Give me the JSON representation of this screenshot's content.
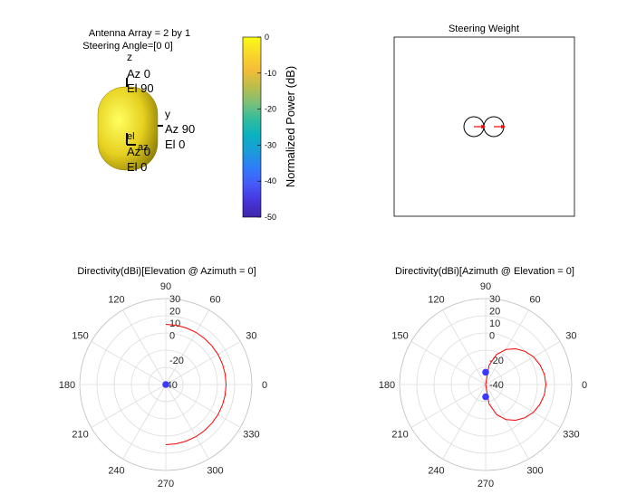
{
  "figure": {
    "antenna_title_line1": "Antenna Array = 2 by 1",
    "antenna_title_line2": "Steering Angle=[0 0]",
    "body_color": "#e6d020",
    "axis_labels": {
      "z_label": "z",
      "z_az": "Az 0",
      "z_el": "El 90",
      "y_label": "y",
      "y_az": "Az 90",
      "y_el": "El 0",
      "x_el": "el",
      "x_az_short": "az",
      "x_az": "Az 0",
      "x_el_val": "El 0"
    }
  },
  "chart_data": [
    {
      "type": "colorbar",
      "ylabel": "Normalized Power (dB)",
      "range": [
        -50,
        0
      ],
      "ticks": [
        0,
        -10,
        -20,
        -30,
        -40,
        -50
      ],
      "tick_labels": [
        "0",
        "-10",
        "-20",
        "-30",
        "-40",
        "-50"
      ],
      "colormap": [
        "#3e26a8",
        "#4734dd",
        "#4659f9",
        "#2f7cfa",
        "#1a9bda",
        "#0ab1c0",
        "#31bd9c",
        "#7fbf77",
        "#bcbd49",
        "#f4bd38",
        "#f9d82a",
        "#f9fb15"
      ]
    },
    {
      "type": "scatter",
      "title": "Steering Weight",
      "points": [
        {
          "x": -1,
          "y": 0
        },
        {
          "x": 1,
          "y": 0
        }
      ],
      "arrows": [
        {
          "x": -1,
          "angle_deg": 0
        },
        {
          "x": 1,
          "angle_deg": 0
        }
      ],
      "marker": "circle",
      "arrow_color": "#ff0000",
      "grid": false
    },
    {
      "type": "polar",
      "title": "Directivity(dBi)[Elevation @ Azimuth = 0]",
      "angle_ticks": [
        0,
        30,
        60,
        90,
        120,
        150,
        180,
        210,
        240,
        270,
        300,
        330
      ],
      "angle_tick_labels": [
        "0",
        "30",
        "60",
        "90",
        "120",
        "150",
        "180",
        "210",
        "240",
        "270",
        "300",
        "330"
      ],
      "radial_ticks": [
        30,
        20,
        10,
        0,
        -20
      ],
      "radial_tick_labels": [
        "30",
        "20",
        "10",
        "0",
        "-20"
      ],
      "radial_labels_extra": [
        "-40"
      ],
      "series": [
        {
          "color": "#ff0000",
          "points": [
            {
              "theta": 90,
              "r": 9
            },
            {
              "theta": 80,
              "r": 9
            },
            {
              "theta": 70,
              "r": 9
            },
            {
              "theta": 60,
              "r": 9
            },
            {
              "theta": 50,
              "r": 9
            },
            {
              "theta": 40,
              "r": 9
            },
            {
              "theta": 30,
              "r": 9
            },
            {
              "theta": 20,
              "r": 9
            },
            {
              "theta": 10,
              "r": 9
            },
            {
              "theta": 0,
              "r": 9
            },
            {
              "theta": -10,
              "r": 9
            },
            {
              "theta": -20,
              "r": 9
            },
            {
              "theta": -30,
              "r": 9
            },
            {
              "theta": -40,
              "r": 9
            },
            {
              "theta": -50,
              "r": 9
            },
            {
              "theta": -60,
              "r": 9
            },
            {
              "theta": -70,
              "r": 9
            },
            {
              "theta": -80,
              "r": 9
            },
            {
              "theta": -90,
              "r": 9
            }
          ]
        }
      ],
      "markers": [
        {
          "theta": 0,
          "r": -40
        }
      ],
      "marker_color": "#3a3aff",
      "rlim": [
        -40,
        30
      ]
    },
    {
      "type": "polar",
      "title": "Directivity(dBi)[Azimuth @ Elevation = 0]",
      "angle_ticks": [
        0,
        30,
        60,
        90,
        120,
        150,
        180,
        210,
        240,
        270,
        300,
        330
      ],
      "angle_tick_labels": [
        "0",
        "30",
        "60",
        "90",
        "120",
        "150",
        "180",
        "210",
        "240",
        "270",
        "300",
        "330"
      ],
      "radial_ticks": [
        30,
        20,
        10,
        0,
        -20,
        -40
      ],
      "radial_tick_labels": [
        "30",
        "20",
        "10",
        "0",
        "-20",
        "-40"
      ],
      "series": [
        {
          "color": "#ff0000",
          "points": [
            {
              "theta": 90,
              "r": -40
            },
            {
              "theta": 80,
              "r": -24
            },
            {
              "theta": 70,
              "r": -14
            },
            {
              "theta": 60,
              "r": -7
            },
            {
              "theta": 50,
              "r": -2
            },
            {
              "theta": 40,
              "r": 2
            },
            {
              "theta": 30,
              "r": 5
            },
            {
              "theta": 20,
              "r": 7
            },
            {
              "theta": 10,
              "r": 8.5
            },
            {
              "theta": 0,
              "r": 9
            },
            {
              "theta": -10,
              "r": 8.5
            },
            {
              "theta": -20,
              "r": 7
            },
            {
              "theta": -30,
              "r": 5
            },
            {
              "theta": -40,
              "r": 2
            },
            {
              "theta": -50,
              "r": -2
            },
            {
              "theta": -60,
              "r": -7
            },
            {
              "theta": -70,
              "r": -14
            },
            {
              "theta": -80,
              "r": -24
            },
            {
              "theta": -90,
              "r": -40
            }
          ]
        }
      ],
      "markers": [
        {
          "theta": 90,
          "r": -30
        },
        {
          "theta": 270,
          "r": -30
        }
      ],
      "marker_color": "#3a3aff",
      "rlim": [
        -40,
        30
      ]
    }
  ]
}
